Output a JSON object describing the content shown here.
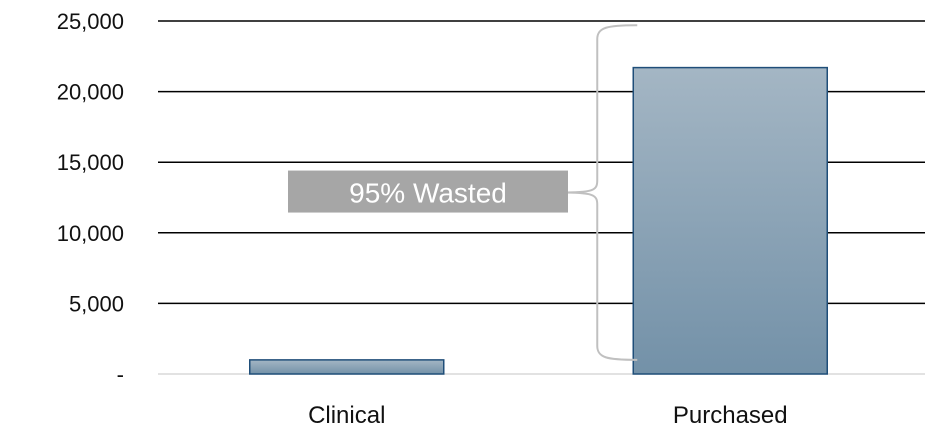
{
  "chart_data": {
    "type": "bar",
    "categories": [
      "Clinical",
      "Purchased"
    ],
    "values": [
      1000,
      21700
    ],
    "ylim": [
      0,
      25000
    ],
    "yticks": [
      0,
      5000,
      10000,
      15000,
      20000,
      25000
    ],
    "ytick_labels": [
      "-",
      "5,000",
      "10,000",
      "15,000",
      "20,000",
      "25,000"
    ],
    "grid": true,
    "legend": "none",
    "annotation": {
      "text": "95% Wasted",
      "bracket_from": 1000,
      "bracket_to": 24700,
      "category": "Purchased"
    },
    "colors": {
      "bar_top": "#a4b6c4",
      "bar_bottom": "#7391a8",
      "bar_edge": "#1f4e79",
      "annotation_box": "#a6a6a6",
      "bracket": "#c0c0c0",
      "grid": "#000000"
    }
  }
}
